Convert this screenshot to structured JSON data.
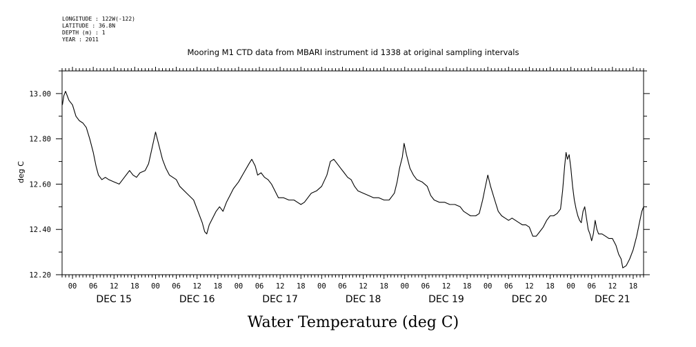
{
  "metadata": {
    "lines": [
      "LONGITUDE : 122W(-122)",
      "LATITUDE : 36.8N",
      "DEPTH (m) : 1",
      "YEAR : 2011"
    ]
  },
  "chart_data": {
    "type": "line",
    "title": "Mooring M1 CTD data from MBARI instrument id 1338 at original sampling intervals",
    "xlabel": "Water Temperature (deg C)",
    "ylabel": "deg C",
    "ylim": [
      12.2,
      13.1
    ],
    "y_ticks": [
      12.2,
      12.4,
      12.6,
      12.8,
      13.0
    ],
    "y_tick_labels": [
      "12.20",
      "12.40",
      "12.60",
      "12.80",
      "13.00"
    ],
    "x_range_hours": [
      -3,
      165
    ],
    "x_ticks_hours": [
      0,
      6,
      12,
      18,
      24,
      30,
      36,
      42,
      48,
      54,
      60,
      66,
      72,
      78,
      84,
      90,
      96,
      102,
      108,
      114,
      120,
      126,
      132,
      138,
      144,
      150,
      156,
      162
    ],
    "x_tick_labels": [
      "00",
      "06",
      "12",
      "18",
      "00",
      "06",
      "12",
      "18",
      "00",
      "06",
      "12",
      "18",
      "00",
      "06",
      "12",
      "18",
      "00",
      "06",
      "12",
      "18",
      "00",
      "06",
      "12",
      "18",
      "00",
      "06",
      "12",
      "18"
    ],
    "day_labels": [
      {
        "label": "DEC 15",
        "hour": 12
      },
      {
        "label": "DEC 16",
        "hour": 36
      },
      {
        "label": "DEC 17",
        "hour": 60
      },
      {
        "label": "DEC 18",
        "hour": 84
      },
      {
        "label": "DEC 19",
        "hour": 108
      },
      {
        "label": "DEC 20",
        "hour": 132
      },
      {
        "label": "DEC 21",
        "hour": 156
      }
    ],
    "grid": false,
    "series": [
      {
        "color": "#000000",
        "points": [
          [
            -2.9,
            12.95
          ],
          [
            -2.5,
            12.99
          ],
          [
            -2.0,
            13.01
          ],
          [
            -1.5,
            12.99
          ],
          [
            -1.0,
            12.97
          ],
          [
            0.0,
            12.95
          ],
          [
            1.0,
            12.9
          ],
          [
            2.0,
            12.88
          ],
          [
            3.0,
            12.87
          ],
          [
            4.0,
            12.85
          ],
          [
            5.0,
            12.8
          ],
          [
            6.0,
            12.74
          ],
          [
            6.8,
            12.68
          ],
          [
            7.5,
            12.64
          ],
          [
            8.5,
            12.62
          ],
          [
            9.5,
            12.63
          ],
          [
            10.5,
            12.62
          ],
          [
            12.0,
            12.61
          ],
          [
            13.5,
            12.6
          ],
          [
            15.0,
            12.63
          ],
          [
            16.5,
            12.66
          ],
          [
            17.5,
            12.64
          ],
          [
            18.5,
            12.63
          ],
          [
            19.5,
            12.65
          ],
          [
            21.0,
            12.66
          ],
          [
            22.0,
            12.69
          ],
          [
            23.0,
            12.76
          ],
          [
            24.0,
            12.83
          ],
          [
            25.0,
            12.77
          ],
          [
            26.0,
            12.71
          ],
          [
            27.0,
            12.67
          ],
          [
            28.0,
            12.64
          ],
          [
            30.0,
            12.62
          ],
          [
            31.0,
            12.59
          ],
          [
            33.0,
            12.56
          ],
          [
            35.0,
            12.53
          ],
          [
            36.5,
            12.47
          ],
          [
            37.5,
            12.43
          ],
          [
            38.2,
            12.39
          ],
          [
            38.8,
            12.38
          ],
          [
            39.5,
            12.42
          ],
          [
            40.5,
            12.45
          ],
          [
            41.5,
            12.48
          ],
          [
            42.5,
            12.5
          ],
          [
            43.5,
            12.48
          ],
          [
            44.5,
            12.52
          ],
          [
            45.5,
            12.55
          ],
          [
            46.5,
            12.58
          ],
          [
            48.0,
            12.61
          ],
          [
            49.5,
            12.65
          ],
          [
            51.0,
            12.69
          ],
          [
            51.8,
            12.71
          ],
          [
            52.8,
            12.68
          ],
          [
            53.5,
            12.64
          ],
          [
            54.5,
            12.65
          ],
          [
            55.5,
            12.63
          ],
          [
            56.5,
            12.62
          ],
          [
            57.5,
            12.6
          ],
          [
            58.5,
            12.57
          ],
          [
            59.5,
            12.54
          ],
          [
            61.0,
            12.54
          ],
          [
            62.5,
            12.53
          ],
          [
            64.0,
            12.53
          ],
          [
            65.0,
            12.52
          ],
          [
            66.0,
            12.51
          ],
          [
            67.0,
            12.52
          ],
          [
            68.0,
            12.54
          ],
          [
            69.0,
            12.56
          ],
          [
            70.5,
            12.57
          ],
          [
            72.0,
            12.59
          ],
          [
            73.5,
            12.64
          ],
          [
            74.5,
            12.7
          ],
          [
            75.5,
            12.71
          ],
          [
            76.5,
            12.69
          ],
          [
            77.5,
            12.67
          ],
          [
            78.5,
            12.65
          ],
          [
            79.5,
            12.63
          ],
          [
            80.5,
            12.62
          ],
          [
            81.5,
            12.59
          ],
          [
            82.5,
            12.57
          ],
          [
            84.0,
            12.56
          ],
          [
            85.5,
            12.55
          ],
          [
            87.0,
            12.54
          ],
          [
            88.5,
            12.54
          ],
          [
            90.0,
            12.53
          ],
          [
            91.5,
            12.53
          ],
          [
            92.5,
            12.55
          ],
          [
            93.0,
            12.56
          ],
          [
            93.8,
            12.61
          ],
          [
            94.5,
            12.67
          ],
          [
            95.3,
            12.72
          ],
          [
            95.8,
            12.78
          ],
          [
            96.5,
            12.73
          ],
          [
            97.5,
            12.67
          ],
          [
            98.5,
            12.64
          ],
          [
            99.5,
            12.62
          ],
          [
            101.0,
            12.61
          ],
          [
            102.5,
            12.59
          ],
          [
            103.5,
            12.55
          ],
          [
            104.5,
            12.53
          ],
          [
            106.0,
            12.52
          ],
          [
            107.5,
            12.52
          ],
          [
            109.0,
            12.51
          ],
          [
            110.5,
            12.51
          ],
          [
            112.0,
            12.5
          ],
          [
            113.0,
            12.48
          ],
          [
            114.0,
            12.47
          ],
          [
            115.0,
            12.46
          ],
          [
            116.5,
            12.46
          ],
          [
            117.5,
            12.47
          ],
          [
            118.5,
            12.53
          ],
          [
            119.3,
            12.59
          ],
          [
            120.0,
            12.64
          ],
          [
            120.8,
            12.59
          ],
          [
            122.0,
            12.53
          ],
          [
            123.0,
            12.48
          ],
          [
            124.0,
            12.46
          ],
          [
            125.0,
            12.45
          ],
          [
            126.0,
            12.44
          ],
          [
            127.0,
            12.45
          ],
          [
            128.0,
            12.44
          ],
          [
            129.0,
            12.43
          ],
          [
            130.0,
            12.42
          ],
          [
            131.0,
            12.42
          ],
          [
            132.0,
            12.41
          ],
          [
            133.0,
            12.37
          ],
          [
            134.0,
            12.37
          ],
          [
            135.0,
            12.39
          ],
          [
            136.0,
            12.41
          ],
          [
            137.0,
            12.44
          ],
          [
            138.0,
            12.46
          ],
          [
            139.0,
            12.46
          ],
          [
            140.0,
            12.47
          ],
          [
            141.0,
            12.49
          ],
          [
            141.6,
            12.57
          ],
          [
            142.2,
            12.68
          ],
          [
            142.6,
            12.74
          ],
          [
            143.0,
            12.71
          ],
          [
            143.5,
            12.73
          ],
          [
            144.0,
            12.67
          ],
          [
            144.5,
            12.59
          ],
          [
            145.0,
            12.53
          ],
          [
            145.5,
            12.49
          ],
          [
            146.0,
            12.46
          ],
          [
            146.5,
            12.44
          ],
          [
            147.0,
            12.43
          ],
          [
            147.5,
            12.48
          ],
          [
            148.0,
            12.5
          ],
          [
            148.5,
            12.45
          ],
          [
            149.0,
            12.4
          ],
          [
            149.5,
            12.38
          ],
          [
            150.0,
            12.35
          ],
          [
            150.5,
            12.38
          ],
          [
            151.0,
            12.44
          ],
          [
            151.5,
            12.4
          ],
          [
            152.0,
            12.38
          ],
          [
            153.0,
            12.38
          ],
          [
            154.0,
            12.37
          ],
          [
            155.0,
            12.36
          ],
          [
            156.0,
            12.36
          ],
          [
            157.0,
            12.33
          ],
          [
            157.8,
            12.29
          ],
          [
            158.5,
            12.27
          ],
          [
            159.0,
            12.23
          ],
          [
            160.0,
            12.24
          ],
          [
            161.0,
            12.27
          ],
          [
            162.0,
            12.31
          ],
          [
            163.0,
            12.37
          ],
          [
            163.8,
            12.43
          ],
          [
            164.5,
            12.48
          ],
          [
            165.0,
            12.5
          ]
        ]
      }
    ]
  }
}
